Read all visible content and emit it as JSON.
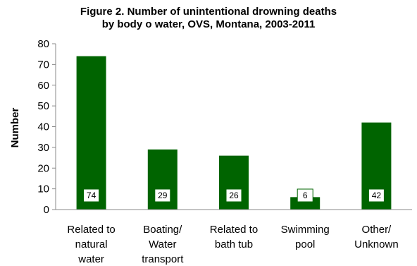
{
  "chart_data": {
    "type": "bar",
    "title_lines": [
      "Figure 2.  Number of unintentional drowning deaths",
      "by body o water, OVS, Montana,  2003-2011"
    ],
    "ylabel": "Number",
    "xlabel": "",
    "ylim": [
      0,
      80
    ],
    "yticks": [
      0,
      10,
      20,
      30,
      40,
      50,
      60,
      70,
      80
    ],
    "categories": [
      [
        "Related to",
        "natural",
        "water"
      ],
      [
        "Boating/",
        "Water",
        "transport"
      ],
      [
        "Related to",
        "bath tub"
      ],
      [
        "Swimming",
        "pool"
      ],
      [
        "Other/",
        "Unknown"
      ]
    ],
    "values": [
      74,
      29,
      26,
      6,
      42
    ],
    "data_labels": [
      "74",
      "29",
      "26",
      "6",
      "42"
    ],
    "bar_color": "#006400",
    "grid": false,
    "legend": "none"
  }
}
